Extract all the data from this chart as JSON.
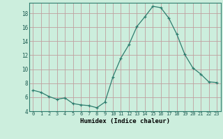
{
  "x": [
    0,
    1,
    2,
    3,
    4,
    5,
    6,
    7,
    8,
    9,
    10,
    11,
    12,
    13,
    14,
    15,
    16,
    17,
    18,
    19,
    20,
    21,
    22,
    23
  ],
  "y": [
    7.0,
    6.7,
    6.1,
    5.7,
    5.9,
    5.1,
    4.9,
    4.8,
    4.5,
    5.3,
    8.9,
    11.6,
    13.5,
    16.1,
    17.5,
    19.0,
    18.8,
    17.3,
    15.0,
    12.1,
    10.2,
    9.3,
    8.2,
    8.1
  ],
  "line_color": "#2e7d6e",
  "marker": "+",
  "marker_size": 3,
  "bg_color": "#cceedd",
  "grid_color": "#c0a0a0",
  "xlabel": "Humidex (Indice chaleur)",
  "xlim": [
    -0.5,
    23.5
  ],
  "ylim": [
    4,
    19.5
  ],
  "yticks": [
    4,
    6,
    8,
    10,
    12,
    14,
    16,
    18
  ],
  "xticks": [
    0,
    1,
    2,
    3,
    4,
    5,
    6,
    7,
    8,
    9,
    10,
    11,
    12,
    13,
    14,
    15,
    16,
    17,
    18,
    19,
    20,
    21,
    22,
    23
  ]
}
